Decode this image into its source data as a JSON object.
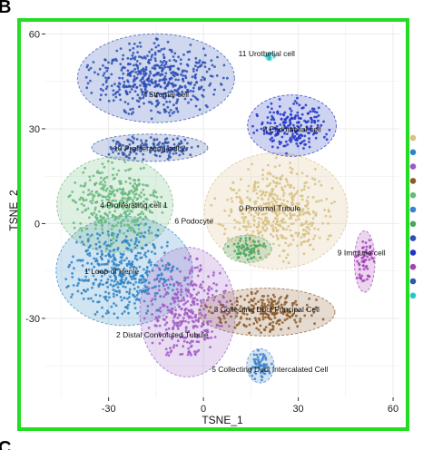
{
  "panel_letters": {
    "top": "B",
    "bottom": "C"
  },
  "colors": {
    "frame": "#22dd22",
    "plot_background": "#ffffff",
    "grid": "#ebebeb"
  },
  "chart_data": {
    "type": "scatter",
    "xlabel": "TSNE_1",
    "ylabel": "TSNE_2",
    "xlim": [
      -50,
      62
    ],
    "ylim": [
      -55,
      63
    ],
    "xticks": [
      -30,
      0,
      30,
      60
    ],
    "yticks": [
      -30,
      0,
      30,
      60
    ],
    "grid": true,
    "legend": "right (point markers only, no visible text)",
    "clusters": [
      {
        "id": 0,
        "label": "0 Proximal Tubule",
        "label_at": [
          21,
          4
        ],
        "color": "#d8c184",
        "cx": 23,
        "cy": 4,
        "rx": 21,
        "ry": 17,
        "n": 500
      },
      {
        "id": 1,
        "label": "1 Loop of Henle",
        "label_at": [
          -29,
          -16
        ],
        "color": "#2f84c4",
        "cx": -25,
        "cy": -15,
        "rx": 20,
        "ry": 16,
        "n": 460
      },
      {
        "id": 2,
        "label": "2 Distal Convoluted Tubule",
        "label_at": [
          -13,
          -36
        ],
        "color": "#9d59c6",
        "cx": -5,
        "cy": -28,
        "rx": 14,
        "ry": 19,
        "n": 330
      },
      {
        "id": 3,
        "label": "3 Collecting Duct Principal Cell",
        "label_at": [
          20,
          -28
        ],
        "color": "#8b5a2b",
        "cx": 20,
        "cy": -28,
        "rx": 20,
        "ry": 7,
        "n": 230
      },
      {
        "id": 4,
        "label": "4 Proliferating cell 1",
        "label_at": [
          -22,
          5
        ],
        "color": "#67b97b",
        "cx": -28,
        "cy": 6,
        "rx": 17,
        "ry": 14,
        "n": 360
      },
      {
        "id": 5,
        "label": "5 Collecting Duct Intercalated Cell",
        "label_at": [
          21,
          -47
        ],
        "color": "#3b82c9",
        "cx": 18,
        "cy": -45,
        "rx": 4,
        "ry": 5,
        "n": 60
      },
      {
        "id": 6,
        "label": "6 Podocyte",
        "label_at": [
          -3,
          0
        ],
        "color": "#4aa560",
        "cx": 14,
        "cy": -8,
        "rx": 7,
        "ry": 4,
        "n": 70
      },
      {
        "id": 7,
        "label": "7 Stromal cell",
        "label_at": [
          -12,
          40
        ],
        "color": "#2b4fb5",
        "cx": -15,
        "cy": 46,
        "rx": 23,
        "ry": 13,
        "n": 520
      },
      {
        "id": 8,
        "label": "8 Endothelial cell",
        "label_at": [
          28,
          29
        ],
        "color": "#2035c4",
        "cx": 28,
        "cy": 31,
        "rx": 13,
        "ry": 9,
        "n": 210
      },
      {
        "id": 9,
        "label": "9 Immune cell",
        "label_at": [
          50,
          -10
        ],
        "color": "#a540b8",
        "cx": 51,
        "cy": -12,
        "rx": 3,
        "ry": 9,
        "n": 60
      },
      {
        "id": 10,
        "label": "10 Proliferating cell 2",
        "label_at": [
          -17,
          23
        ],
        "color": "#3355aa",
        "cx": -17,
        "cy": 24,
        "rx": 17,
        "ry": 4,
        "n": 150
      },
      {
        "id": 11,
        "label": "11 Urothelial cell",
        "label_at": [
          20,
          53
        ],
        "color": "#28c7c7",
        "cx": 21,
        "cy": 53,
        "rx": 1.5,
        "ry": 1.2,
        "n": 15
      }
    ]
  }
}
